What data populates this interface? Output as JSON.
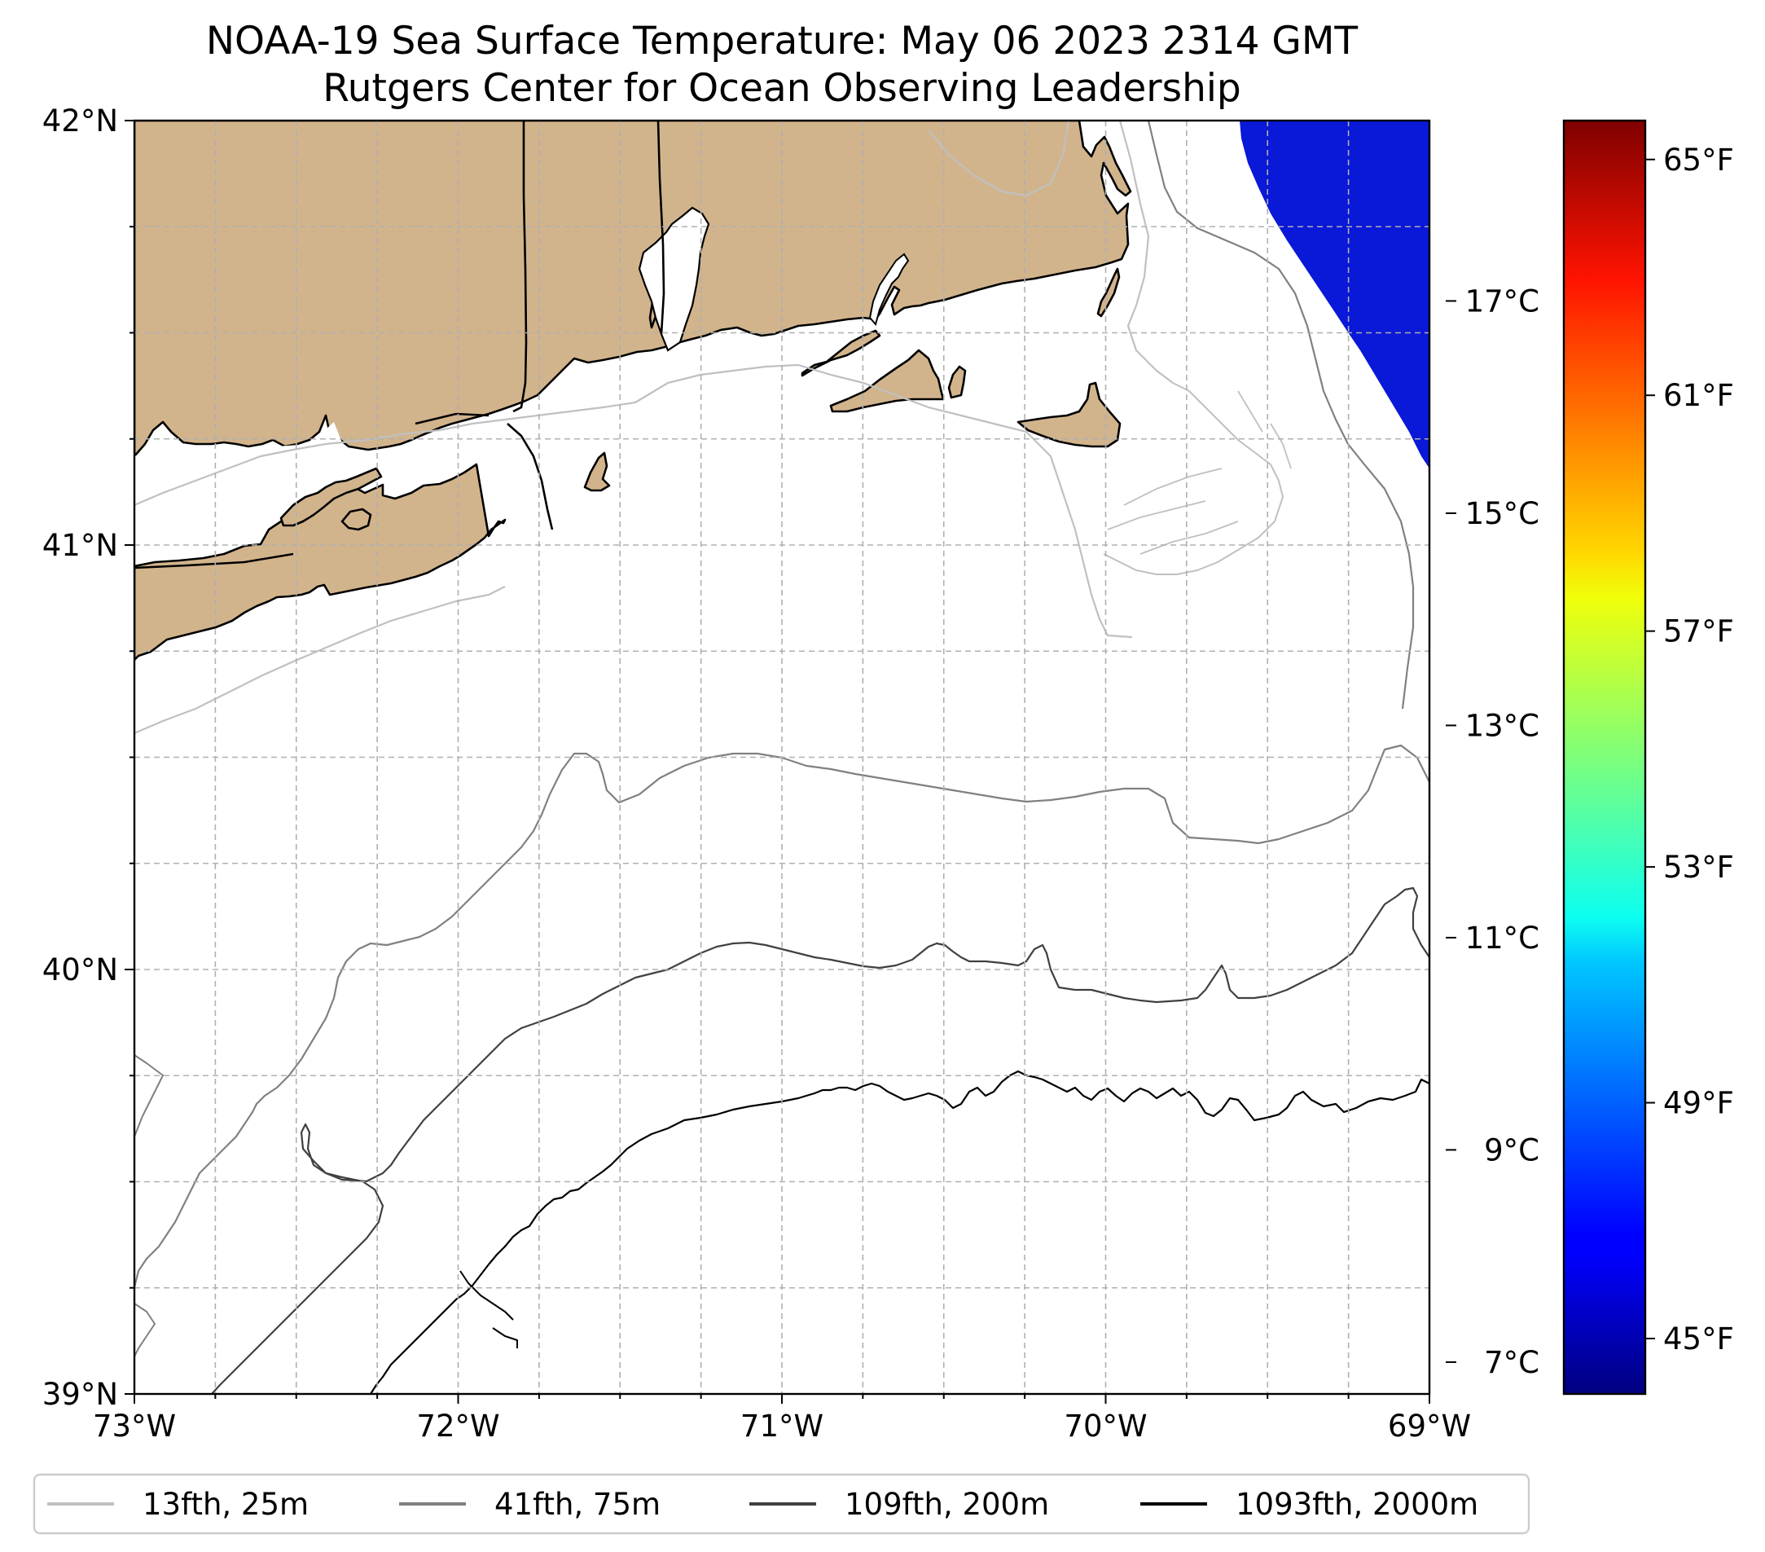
{
  "title": {
    "line1": "NOAA-19 Sea Surface Temperature: May 06 2023 2314 GMT",
    "line2": "Rutgers Center for Ocean Observing Leadership"
  },
  "map": {
    "lon_range": [
      -73,
      -69
    ],
    "lat_range": [
      39,
      42
    ],
    "x_ticks": [
      "73°W",
      "72°W",
      "71°W",
      "70°W",
      "69°W"
    ],
    "y_ticks": [
      "42°N",
      "41°N",
      "40°N",
      "39°N"
    ],
    "land_color": "#d2b48c",
    "ocean_color": "#ffffff",
    "sst_patch": {
      "region": "northeast corner",
      "value_c": 8.5,
      "color": "#0a18d8"
    }
  },
  "colorbar": {
    "colormap": "jet",
    "range_c": [
      6.7,
      18.7
    ],
    "celsius_ticks": [
      {
        "label": "17°C",
        "value": 17
      },
      {
        "label": "15°C",
        "value": 15
      },
      {
        "label": "13°C",
        "value": 13
      },
      {
        "label": "11°C",
        "value": 11
      },
      {
        "label": "9°C",
        "value": 9
      },
      {
        "label": "7°C",
        "value": 7
      }
    ],
    "fahrenheit_ticks": [
      {
        "label": "65°F",
        "value": 65
      },
      {
        "label": "61°F",
        "value": 61
      },
      {
        "label": "57°F",
        "value": 57
      },
      {
        "label": "53°F",
        "value": 53
      },
      {
        "label": "49°F",
        "value": 49
      },
      {
        "label": "45°F",
        "value": 45
      }
    ]
  },
  "legend": {
    "items": [
      {
        "label": "13fth, 25m",
        "color": "#c0c0c0"
      },
      {
        "label": "41fth, 75m",
        "color": "#808080"
      },
      {
        "label": "109fth, 200m",
        "color": "#404040"
      },
      {
        "label": "1093fth, 2000m",
        "color": "#000000"
      }
    ]
  }
}
